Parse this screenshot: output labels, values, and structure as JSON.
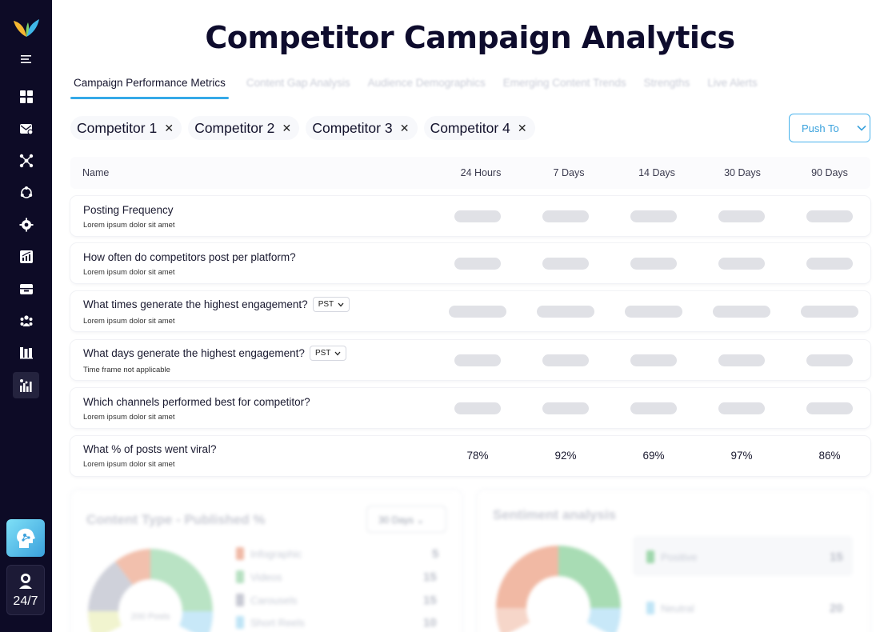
{
  "page_title": "Competitor Campaign Analytics",
  "tabs": [
    {
      "label": "Campaign Performance Metrics",
      "active": true
    },
    {
      "label": "Content Gap Analysis",
      "active": false
    },
    {
      "label": "Audience Demographics",
      "active": false
    },
    {
      "label": "Emerging Content Trends",
      "active": false
    },
    {
      "label": "Strengths",
      "active": false
    },
    {
      "label": "Live Alerts",
      "active": false
    }
  ],
  "competitors": [
    "Competitor 1",
    "Competitor 2",
    "Competitor 3",
    "Competitor 4"
  ],
  "push_button_label": "Push To",
  "table": {
    "name_header": "Name",
    "columns": [
      "24 Hours",
      "7 Days",
      "14 Days",
      "30 Days",
      "90 Days"
    ],
    "rows": [
      {
        "title": "Posting Frequency",
        "subtitle": "Lorem ipsum dolor sit amet",
        "loading": true
      },
      {
        "title": "How often do competitors post per platform?",
        "subtitle": "Lorem ipsum dolor sit amet",
        "loading": true
      },
      {
        "title": "What times generate the highest engagement?",
        "timezone": "PST",
        "subtitle": "Lorem ipsum dolor sit amet",
        "loading": true
      },
      {
        "title": "What days generate the highest engagement?",
        "timezone": "PST",
        "subtitle": "Time frame not applicable",
        "loading": true
      },
      {
        "title": "Which channels performed best for competitor?",
        "subtitle": "Lorem ipsum dolor sit amet",
        "loading": true
      },
      {
        "title": "What % of posts went viral?",
        "subtitle": "Lorem ipsum dolor sit amet",
        "values": [
          "78%",
          "92%",
          "69%",
          "97%",
          "86%"
        ]
      }
    ]
  },
  "content_type_panel": {
    "title": "Content Type - Published %",
    "range": "30 Days",
    "center_label": "200 Posts",
    "legend": [
      {
        "label": "Infographic",
        "value": "5",
        "color": "#f0b9a6"
      },
      {
        "label": "Videos",
        "value": "15",
        "color": "#b6e0c1"
      },
      {
        "label": "Carousels",
        "value": "15",
        "color": "#c7c9d3"
      },
      {
        "label": "Short Reels",
        "value": "10",
        "color": "#bfe4f6"
      }
    ]
  },
  "sentiment_panel": {
    "title": "Sentiment analysis",
    "legend": [
      {
        "label": "Positive",
        "value": "15",
        "color": "#9fd7ac"
      },
      {
        "label": "Neutral",
        "value": "20",
        "color": "#bfe4f6"
      }
    ]
  },
  "sidebar": {
    "support_label": "24/7",
    "icons": [
      "menu-icon",
      "dashboard-icon",
      "inbox-icon",
      "network-icon",
      "sync-icon",
      "settings-icon",
      "analytics-icon",
      "archive-icon",
      "team-icon",
      "library-icon",
      "competitor-analytics-icon"
    ]
  }
}
